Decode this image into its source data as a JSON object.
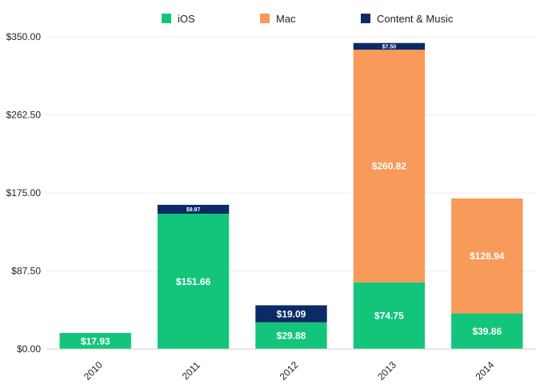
{
  "chart_data": {
    "type": "bar",
    "stacked": true,
    "title": "",
    "xlabel": "",
    "ylabel": "",
    "categories": [
      "2010",
      "2011",
      "2012",
      "2013",
      "2014"
    ],
    "ylim": [
      0,
      350
    ],
    "yticks": [
      "$0.00",
      "$87.50",
      "$175.00",
      "$262.50",
      "$350.00"
    ],
    "ytick_values": [
      0,
      87.5,
      175,
      262.5,
      350
    ],
    "grid": true,
    "legend_position": "top-center",
    "series": [
      {
        "name": "iOS",
        "color": "#13c57a",
        "values": [
          17.93,
          151.66,
          29.88,
          74.75,
          39.86
        ],
        "labels": [
          "$17.93",
          "$151.66",
          "$29.88",
          "$74.75",
          "$39.86"
        ]
      },
      {
        "name": "Mac",
        "color": "#f79a5a",
        "values": [
          0,
          0,
          0,
          260.82,
          128.94
        ],
        "labels": [
          "",
          "",
          "",
          "$260.82",
          "$128.94"
        ]
      },
      {
        "name": "Content & Music",
        "color": "#0b2a66",
        "values": [
          0,
          9.97,
          19.09,
          7.5,
          0
        ],
        "labels": [
          "",
          "$9.97",
          "$19.09",
          "$7.50",
          ""
        ]
      }
    ]
  }
}
